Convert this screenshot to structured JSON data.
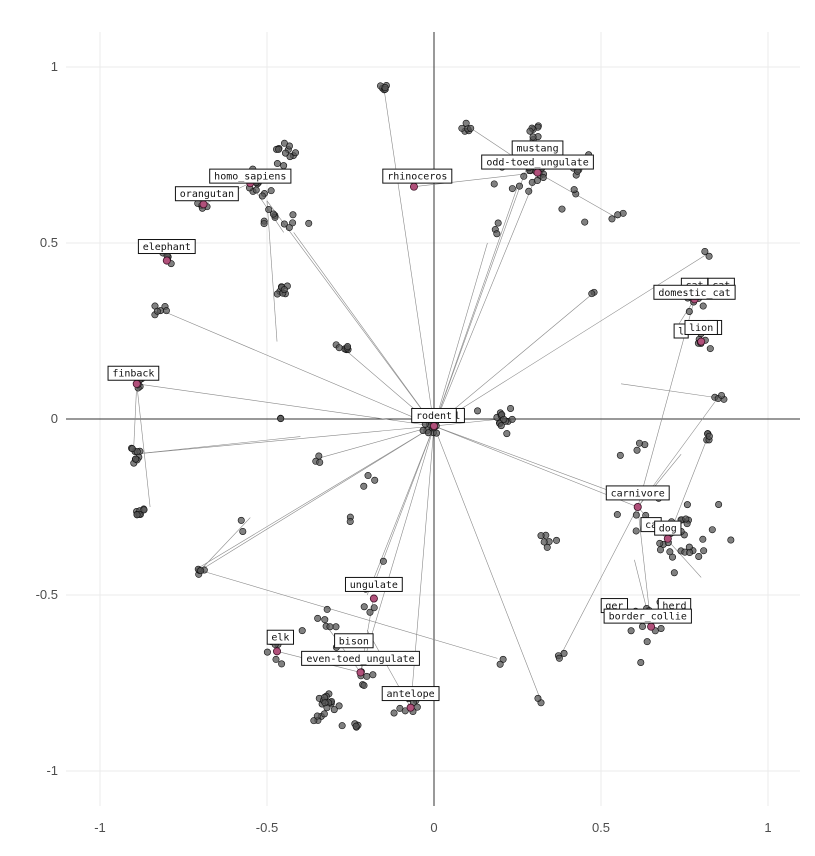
{
  "chart_data": {
    "type": "scatter",
    "title": "",
    "xlabel": "",
    "ylabel": "",
    "xlim": [
      -1.1,
      1.1
    ],
    "ylim": [
      -1.1,
      1.1
    ],
    "x_ticks": [
      -1,
      -0.5,
      0,
      0.5,
      1
    ],
    "x_tick_labels": [
      "-1",
      "-0.5",
      "0",
      "0.5",
      "1"
    ],
    "y_ticks": [
      -1,
      -0.5,
      0,
      0.5,
      1
    ],
    "y_tick_labels": [
      "-1",
      "-0.5",
      "0",
      "0.5",
      "1"
    ],
    "grid": true,
    "origin_axes": true,
    "colors": {
      "point": "#555555",
      "centroid": "#b0507a",
      "segment": "#8a8a8a",
      "grid": "#ebebeb"
    },
    "labels": [
      {
        "text": "mustang",
        "x": 0.31,
        "y": 0.77
      },
      {
        "text": "odd-toed_ungulate",
        "x": 0.31,
        "y": 0.73
      },
      {
        "text": "rhinoceros",
        "x": -0.05,
        "y": 0.69
      },
      {
        "text": "homo_sapiens",
        "x": -0.55,
        "y": 0.69
      },
      {
        "text": "orangutan",
        "x": -0.68,
        "y": 0.64
      },
      {
        "text": "elephant",
        "x": -0.8,
        "y": 0.49
      },
      {
        "text": "finback",
        "x": -0.9,
        "y": 0.13
      },
      {
        "text": "cat",
        "x": 0.78,
        "y": 0.38
      },
      {
        "text": "domestic_cat",
        "x": 0.78,
        "y": 0.36
      },
      {
        "text": "lion",
        "x": 0.8,
        "y": 0.26
      },
      {
        "text": "rodent",
        "x": 0,
        "y": 0.01
      },
      {
        "text": "carnivore",
        "x": 0.61,
        "y": -0.21
      },
      {
        "text": "dog",
        "x": 0.7,
        "y": -0.31
      },
      {
        "text": "border_collie",
        "x": 0.64,
        "y": -0.56
      },
      {
        "text": "ungulate",
        "x": -0.18,
        "y": -0.47
      },
      {
        "text": "elk",
        "x": -0.46,
        "y": -0.62
      },
      {
        "text": "bison",
        "x": -0.24,
        "y": -0.63
      },
      {
        "text": "even-toed_ungulate",
        "x": -0.22,
        "y": -0.68
      },
      {
        "text": "antelope",
        "x": -0.07,
        "y": -0.78
      }
    ],
    "partial_labels": [
      {
        "text": "cat",
        "x": 0.86,
        "y": 0.38
      },
      {
        "text": "l",
        "x": 0.07,
        "y": 0.01
      },
      {
        "text": "ca",
        "x": 0.65,
        "y": -0.3
      },
      {
        "text": "ger",
        "x": 0.54,
        "y": -0.53
      },
      {
        "text": "herd",
        "x": 0.72,
        "y": -0.53
      },
      {
        "text": "f",
        "x": 0.84,
        "y": 0.26
      },
      {
        "text": "l",
        "x": 0.74,
        "y": 0.25
      }
    ],
    "centroids": [
      [
        0.31,
        0.7
      ],
      [
        -0.06,
        0.66
      ],
      [
        -0.55,
        0.67
      ],
      [
        -0.69,
        0.61
      ],
      [
        -0.8,
        0.45
      ],
      [
        -0.89,
        0.1
      ],
      [
        0.78,
        0.34
      ],
      [
        0.8,
        0.22
      ],
      [
        0.0,
        -0.02
      ],
      [
        0.61,
        -0.25
      ],
      [
        0.7,
        -0.34
      ],
      [
        0.65,
        -0.59
      ],
      [
        -0.18,
        -0.51
      ],
      [
        -0.47,
        -0.66
      ],
      [
        -0.22,
        -0.72
      ],
      [
        -0.07,
        -0.82
      ]
    ],
    "clusters": [
      {
        "c": [
          0.31,
          0.7
        ],
        "n": 14,
        "s": 0.02
      },
      {
        "c": [
          0.3,
          0.82
        ],
        "n": 8,
        "s": 0.01
      },
      {
        "c": [
          0.1,
          0.82
        ],
        "n": 6,
        "s": 0.01
      },
      {
        "c": [
          0.45,
          0.72
        ],
        "n": 8,
        "s": 0.02
      },
      {
        "c": [
          0.24,
          0.67
        ],
        "n": 6,
        "s": 0.03
      },
      {
        "c": [
          0.55,
          0.57
        ],
        "n": 3,
        "s": 0.01
      },
      {
        "c": [
          0.43,
          0.62
        ],
        "n": 4,
        "s": 0.03
      },
      {
        "c": [
          0.2,
          0.55
        ],
        "n": 3,
        "s": 0.02
      },
      {
        "c": [
          -0.15,
          0.94
        ],
        "n": 6,
        "s": 0.005
      },
      {
        "c": [
          -0.45,
          0.75
        ],
        "n": 12,
        "s": 0.02
      },
      {
        "c": [
          -0.53,
          0.66
        ],
        "n": 12,
        "s": 0.02
      },
      {
        "c": [
          -0.5,
          0.58
        ],
        "n": 6,
        "s": 0.02
      },
      {
        "c": [
          -0.42,
          0.53
        ],
        "n": 5,
        "s": 0.03
      },
      {
        "c": [
          -0.69,
          0.61
        ],
        "n": 5,
        "s": 0.01
      },
      {
        "c": [
          -0.8,
          0.45
        ],
        "n": 5,
        "s": 0.01
      },
      {
        "c": [
          -0.45,
          0.37
        ],
        "n": 8,
        "s": 0.01
      },
      {
        "c": [
          -0.82,
          0.31
        ],
        "n": 6,
        "s": 0.01
      },
      {
        "c": [
          -0.27,
          0.2
        ],
        "n": 8,
        "s": 0.01
      },
      {
        "c": [
          -0.89,
          0.1
        ],
        "n": 5,
        "s": 0.01
      },
      {
        "c": [
          -0.9,
          -0.1
        ],
        "n": 10,
        "s": 0.015
      },
      {
        "c": [
          -0.88,
          -0.26
        ],
        "n": 8,
        "s": 0.01
      },
      {
        "c": [
          -0.46,
          0.0
        ],
        "n": 2,
        "s": 0.005
      },
      {
        "c": [
          0.0,
          -0.02
        ],
        "n": 16,
        "s": 0.015
      },
      {
        "c": [
          0.2,
          0.0
        ],
        "n": 14,
        "s": 0.02
      },
      {
        "c": [
          -0.34,
          -0.11
        ],
        "n": 3,
        "s": 0.01
      },
      {
        "c": [
          -0.2,
          -0.17
        ],
        "n": 3,
        "s": 0.01
      },
      {
        "c": [
          0.78,
          0.34
        ],
        "n": 10,
        "s": 0.015
      },
      {
        "c": [
          0.8,
          0.22
        ],
        "n": 8,
        "s": 0.01
      },
      {
        "c": [
          0.82,
          0.47
        ],
        "n": 2,
        "s": 0.005
      },
      {
        "c": [
          0.48,
          0.36
        ],
        "n": 2,
        "s": 0.005
      },
      {
        "c": [
          0.85,
          0.06
        ],
        "n": 4,
        "s": 0.01
      },
      {
        "c": [
          0.82,
          -0.05
        ],
        "n": 5,
        "s": 0.01
      },
      {
        "c": [
          0.61,
          -0.25
        ],
        "n": 6,
        "s": 0.03
      },
      {
        "c": [
          0.75,
          -0.33
        ],
        "n": 30,
        "s": 0.05
      },
      {
        "c": [
          0.65,
          -0.59
        ],
        "n": 12,
        "s": 0.03
      },
      {
        "c": [
          0.6,
          -0.1
        ],
        "n": 4,
        "s": 0.04
      },
      {
        "c": [
          0.34,
          -0.34
        ],
        "n": 6,
        "s": 0.02
      },
      {
        "c": [
          0.38,
          -0.67
        ],
        "n": 3,
        "s": 0.01
      },
      {
        "c": [
          0.32,
          -0.8
        ],
        "n": 2,
        "s": 0.005
      },
      {
        "c": [
          0.2,
          -0.7
        ],
        "n": 2,
        "s": 0.02
      },
      {
        "c": [
          -0.18,
          -0.47
        ],
        "n": 8,
        "s": 0.03
      },
      {
        "c": [
          -0.47,
          -0.66
        ],
        "n": 8,
        "s": 0.02
      },
      {
        "c": [
          -0.33,
          -0.59
        ],
        "n": 8,
        "s": 0.04
      },
      {
        "c": [
          -0.22,
          -0.72
        ],
        "n": 8,
        "s": 0.02
      },
      {
        "c": [
          -0.32,
          -0.82
        ],
        "n": 20,
        "s": 0.02
      },
      {
        "c": [
          -0.08,
          -0.82
        ],
        "n": 10,
        "s": 0.025
      },
      {
        "c": [
          -0.23,
          -0.87
        ],
        "n": 4,
        "s": 0.005
      },
      {
        "c": [
          -0.7,
          -0.43
        ],
        "n": 5,
        "s": 0.01
      },
      {
        "c": [
          -0.6,
          -0.3
        ],
        "n": 2,
        "s": 0.03
      },
      {
        "c": [
          -0.25,
          -0.28
        ],
        "n": 2,
        "s": 0.01
      }
    ],
    "segments": [
      [
        0.0,
        -0.02,
        0.31,
        0.7
      ],
      [
        0.0,
        -0.02,
        0.28,
        0.72
      ],
      [
        0.0,
        -0.02,
        0.25,
        0.66
      ],
      [
        0.0,
        -0.02,
        0.16,
        0.5
      ],
      [
        0.0,
        -0.02,
        -0.15,
        0.94
      ],
      [
        0.0,
        -0.02,
        -0.5,
        0.62
      ],
      [
        0.0,
        -0.02,
        -0.42,
        0.53
      ],
      [
        0.0,
        -0.02,
        -0.27,
        0.2
      ],
      [
        0.0,
        -0.02,
        -0.82,
        0.31
      ],
      [
        0.0,
        -0.02,
        -0.89,
        0.1
      ],
      [
        0.0,
        -0.02,
        -0.9,
        -0.1
      ],
      [
        0.0,
        -0.02,
        -0.7,
        -0.42
      ],
      [
        0.0,
        -0.02,
        -0.34,
        -0.11
      ],
      [
        0.0,
        -0.02,
        -0.18,
        -0.47
      ],
      [
        0.0,
        -0.02,
        -0.2,
        -0.5
      ],
      [
        0.0,
        -0.02,
        -0.22,
        -0.72
      ],
      [
        0.0,
        -0.02,
        -0.07,
        -0.82
      ],
      [
        0.0,
        -0.02,
        0.32,
        -0.8
      ],
      [
        0.0,
        -0.02,
        0.61,
        -0.25
      ],
      [
        0.0,
        -0.02,
        0.6,
        -0.23
      ],
      [
        0.0,
        -0.02,
        0.82,
        0.47
      ],
      [
        0.0,
        -0.02,
        0.48,
        0.36
      ],
      [
        0.0,
        -0.02,
        0.2,
        0.0
      ],
      [
        0.31,
        0.7,
        0.12,
        0.82
      ],
      [
        0.31,
        0.7,
        0.55,
        0.57
      ],
      [
        0.31,
        0.7,
        -0.06,
        0.66
      ],
      [
        -0.55,
        0.67,
        -0.69,
        0.61
      ],
      [
        -0.55,
        0.67,
        -0.45,
        0.53
      ],
      [
        -0.5,
        0.62,
        -0.47,
        0.22
      ],
      [
        -0.89,
        0.1,
        -0.9,
        -0.1
      ],
      [
        -0.89,
        0.1,
        -0.85,
        -0.25
      ],
      [
        -0.9,
        -0.1,
        -0.4,
        -0.05
      ],
      [
        0.61,
        -0.25,
        0.78,
        0.34
      ],
      [
        0.61,
        -0.25,
        0.85,
        0.06
      ],
      [
        0.61,
        -0.25,
        0.38,
        -0.67
      ],
      [
        0.61,
        -0.25,
        0.74,
        -0.1
      ],
      [
        0.61,
        -0.25,
        0.8,
        -0.45
      ],
      [
        0.61,
        -0.25,
        0.65,
        -0.59
      ],
      [
        0.78,
        0.34,
        0.72,
        0.25
      ],
      [
        0.56,
        0.1,
        0.85,
        0.06
      ],
      [
        0.7,
        -0.34,
        0.82,
        -0.05
      ],
      [
        0.65,
        -0.59,
        0.6,
        -0.4
      ],
      [
        -0.7,
        -0.43,
        -0.55,
        -0.28
      ],
      [
        -0.7,
        -0.43,
        0.19,
        -0.68
      ],
      [
        -0.7,
        -0.43,
        0.0,
        -0.02
      ],
      [
        -0.22,
        -0.72,
        -0.32,
        -0.59
      ],
      [
        -0.22,
        -0.72,
        -0.18,
        -0.5
      ],
      [
        -0.22,
        -0.72,
        -0.47,
        -0.66
      ],
      [
        -0.07,
        -0.82,
        -0.2,
        -0.6
      ]
    ]
  }
}
